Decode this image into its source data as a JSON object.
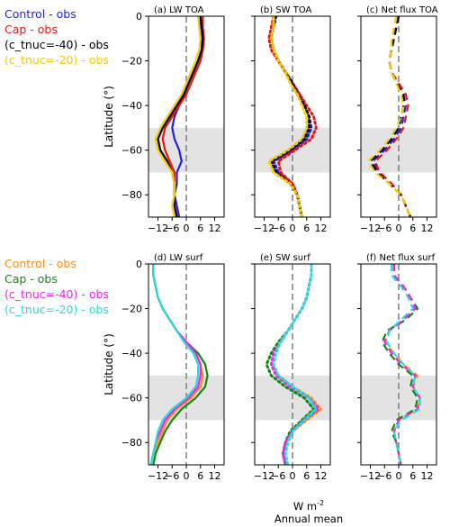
{
  "figure": {
    "xlabel_line1": "W m",
    "xlabel_sup": "-2",
    "xlabel_line2": "Annual mean",
    "ylabel": "Latitude (°)"
  },
  "colors": {
    "shade": "#e3e3e3",
    "zero_line": "#7f7f7f",
    "axis": "#000000"
  },
  "legends": [
    {
      "row": 0,
      "entries": [
        {
          "label": "Control - obs",
          "color": "#1f1fe6"
        },
        {
          "label": "Cap - obs",
          "color": "#ee1111"
        },
        {
          "label": "(c_tnuc=-40) - obs",
          "color": "#000000"
        },
        {
          "label": "(c_tnuc=-20) - obs",
          "color": "#f5cc00"
        }
      ]
    },
    {
      "row": 1,
      "entries": [
        {
          "label": "Control - obs",
          "color": "#ff8c1a"
        },
        {
          "label": "Cap - obs",
          "color": "#118811"
        },
        {
          "label": "(c_tnuc=-40) - obs",
          "color": "#ee22ee"
        },
        {
          "label": "(c_tnuc=-20) - obs",
          "color": "#22dddd"
        }
      ]
    }
  ],
  "chart_data": [
    {
      "type": "line",
      "panel": "(a)",
      "title": "LW TOA",
      "row": 0,
      "col": 0,
      "style": "solid",
      "xlim": [
        -16,
        16
      ],
      "ylim": [
        -90,
        0
      ],
      "xticks": [
        -12,
        -6,
        0,
        6,
        12
      ],
      "yticks": [
        0,
        -20,
        -40,
        -60,
        -80
      ],
      "shade": [
        -70,
        -50
      ],
      "lat": [
        0,
        -5,
        -10,
        -15,
        -20,
        -25,
        -30,
        -35,
        -40,
        -45,
        -50,
        -55,
        -60,
        -65,
        -70,
        -75,
        -80,
        -85,
        -90
      ],
      "series": [
        {
          "name": "Control - obs",
          "color": "#1f1fe6",
          "values": [
            6,
            6,
            6.5,
            6.5,
            5,
            3,
            1,
            -1,
            -3,
            -5,
            -6,
            -5,
            -3,
            -2,
            -4,
            -4,
            -5,
            -4,
            -3
          ]
        },
        {
          "name": "Cap - obs",
          "color": "#ee1111",
          "values": [
            7,
            7,
            7.5,
            7,
            6,
            4,
            2,
            0,
            -3,
            -6,
            -9,
            -10,
            -9,
            -7,
            -5,
            -5,
            -5,
            -5,
            -4
          ]
        },
        {
          "name": "(c_tnuc=-40) - obs",
          "color": "#000000",
          "values": [
            6,
            6.5,
            7,
            6.5,
            5,
            3,
            1,
            -1,
            -4,
            -7,
            -10,
            -12,
            -11,
            -8,
            -6,
            -5,
            -5,
            -5,
            -4
          ]
        },
        {
          "name": "(c_tnuc=-20) - obs",
          "color": "#f5cc00",
          "values": [
            5,
            5.5,
            6,
            5.5,
            4,
            2,
            0,
            -2,
            -5,
            -8,
            -11,
            -13,
            -12,
            -9,
            -6,
            -5,
            -5,
            -6,
            -5
          ]
        }
      ]
    },
    {
      "type": "line",
      "panel": "(b)",
      "title": "SW TOA",
      "row": 0,
      "col": 1,
      "style": "dotted",
      "xlim": [
        -16,
        16
      ],
      "ylim": [
        -90,
        0
      ],
      "xticks": [
        -12,
        -6,
        0,
        6,
        12
      ],
      "yticks": [
        0,
        -20,
        -40,
        -60,
        -80
      ],
      "shade": [
        -70,
        -50
      ],
      "lat": [
        0,
        -5,
        -10,
        -15,
        -20,
        -25,
        -30,
        -35,
        -40,
        -45,
        -50,
        -55,
        -60,
        -65,
        -70,
        -75,
        -80,
        -85,
        -90
      ],
      "series": [
        {
          "name": "Control - obs",
          "color": "#1f1fe6",
          "values": [
            -8,
            -8,
            -9,
            -8,
            -6,
            -3,
            0,
            3,
            5,
            7,
            8,
            6,
            0,
            -8,
            -6,
            0,
            2,
            3,
            4
          ]
        },
        {
          "name": "Cap - obs",
          "color": "#ee1111",
          "values": [
            -8,
            -9,
            -10,
            -9,
            -6,
            -3,
            0,
            3,
            6,
            9,
            10,
            8,
            1,
            -6,
            -5,
            0,
            2,
            3,
            4
          ]
        },
        {
          "name": "(c_tnuc=-40) - obs",
          "color": "#000000",
          "values": [
            -7,
            -8,
            -9,
            -8,
            -6,
            -3,
            0,
            2,
            5,
            7,
            7,
            5,
            -1,
            -9,
            -7,
            -1,
            2,
            3,
            4
          ]
        },
        {
          "name": "(c_tnuc=-20) - obs",
          "color": "#f5cc00",
          "values": [
            -8,
            -8,
            -9,
            -8,
            -6,
            -3,
            -1,
            2,
            4,
            6,
            6,
            4,
            -2,
            -10,
            -8,
            -1,
            2,
            3,
            4
          ]
        }
      ]
    },
    {
      "type": "line",
      "panel": "(c)",
      "title": "Net flux TOA",
      "row": 0,
      "col": 2,
      "style": "dashed",
      "xlim": [
        -16,
        16
      ],
      "ylim": [
        -90,
        0
      ],
      "xticks": [
        -12,
        -6,
        0,
        6,
        12
      ],
      "yticks": [
        0,
        -20,
        -40,
        -60,
        -80
      ],
      "shade": [
        -70,
        -50
      ],
      "lat": [
        0,
        -5,
        -10,
        -15,
        -20,
        -25,
        -30,
        -35,
        -40,
        -45,
        -50,
        -55,
        -60,
        -65,
        -70,
        -75,
        -80,
        -85,
        -90
      ],
      "series": [
        {
          "name": "Control - obs",
          "color": "#1f1fe6",
          "values": [
            0,
            -1,
            -2,
            -3,
            -4,
            -3,
            -1,
            2,
            3,
            2,
            1,
            -2,
            -6,
            -11,
            -8,
            -3,
            1,
            3,
            5
          ]
        },
        {
          "name": "Cap - obs",
          "color": "#ee1111",
          "values": [
            0,
            -1,
            -2,
            -3,
            -4,
            -3,
            0,
            3,
            4,
            3,
            2,
            -1,
            -5,
            -10,
            -8,
            -3,
            1,
            3,
            5
          ]
        },
        {
          "name": "(c_tnuc=-40) - obs",
          "color": "#000000",
          "values": [
            0,
            -1,
            -2,
            -3,
            -4,
            -3,
            -1,
            2,
            2,
            1,
            0,
            -3,
            -7,
            -12,
            -9,
            -4,
            1,
            3,
            5
          ]
        },
        {
          "name": "(c_tnuc=-20) - obs",
          "color": "#f5cc00",
          "values": [
            -1,
            -2,
            -3,
            -3,
            -4,
            -3,
            -1,
            1,
            2,
            1,
            -1,
            -4,
            -8,
            -13,
            -10,
            -4,
            1,
            3,
            5
          ]
        }
      ]
    },
    {
      "type": "line",
      "panel": "(d)",
      "title": "LW surf",
      "row": 1,
      "col": 0,
      "style": "solid",
      "xlim": [
        -16,
        16
      ],
      "ylim": [
        -90,
        0
      ],
      "xticks": [
        -12,
        -6,
        0,
        6,
        12
      ],
      "yticks": [
        0,
        -20,
        -40,
        -60,
        -80
      ],
      "shade": [
        -70,
        -50
      ],
      "lat": [
        0,
        -5,
        -10,
        -15,
        -20,
        -25,
        -30,
        -35,
        -40,
        -45,
        -50,
        -55,
        -60,
        -65,
        -70,
        -75,
        -80,
        -85,
        -90
      ],
      "series": [
        {
          "name": "Control - obs",
          "color": "#ff8c1a",
          "values": [
            -14,
            -14,
            -13,
            -12,
            -10,
            -7,
            -4,
            0,
            4,
            6,
            7,
            6,
            2,
            -4,
            -8,
            -10,
            -12,
            -14,
            -15
          ]
        },
        {
          "name": "Cap - obs",
          "color": "#118811",
          "values": [
            -14,
            -14,
            -13,
            -12,
            -10,
            -7,
            -4,
            0,
            5,
            8,
            9,
            8,
            4,
            -2,
            -6,
            -9,
            -11,
            -13,
            -14
          ]
        },
        {
          "name": "(c_tnuc=-40) - obs",
          "color": "#ee22ee",
          "values": [
            -14,
            -14,
            -13,
            -12,
            -10,
            -7,
            -4,
            0,
            4,
            6,
            6,
            5,
            1,
            -5,
            -9,
            -11,
            -13,
            -14,
            -15
          ]
        },
        {
          "name": "(c_tnuc=-20) - obs",
          "color": "#22dddd",
          "values": [
            -14,
            -14,
            -13,
            -12,
            -10,
            -7,
            -4,
            -1,
            3,
            5,
            5,
            4,
            0,
            -6,
            -10,
            -12,
            -13,
            -14,
            -15
          ]
        }
      ]
    },
    {
      "type": "line",
      "panel": "(e)",
      "title": "SW surf",
      "row": 1,
      "col": 1,
      "style": "dotted",
      "xlim": [
        -16,
        16
      ],
      "ylim": [
        -90,
        0
      ],
      "xticks": [
        -12,
        -6,
        0,
        6,
        12
      ],
      "yticks": [
        0,
        -20,
        -40,
        -60,
        -80
      ],
      "shade": [
        -70,
        -50
      ],
      "lat": [
        0,
        -5,
        -10,
        -15,
        -20,
        -25,
        -30,
        -35,
        -40,
        -45,
        -50,
        -55,
        -60,
        -65,
        -70,
        -75,
        -80,
        -85,
        -90
      ],
      "series": [
        {
          "name": "Control - obs",
          "color": "#ff8c1a",
          "values": [
            8,
            8,
            7,
            6,
            4,
            1,
            -2,
            -5,
            -8,
            -9,
            -6,
            0,
            8,
            12,
            6,
            0,
            -3,
            -4,
            -3
          ]
        },
        {
          "name": "Cap - obs",
          "color": "#118811",
          "values": [
            8,
            8,
            7,
            6,
            4,
            1,
            -2,
            -6,
            -9,
            -11,
            -9,
            -3,
            5,
            9,
            4,
            -1,
            -3,
            -4,
            -3
          ]
        },
        {
          "name": "(c_tnuc=-40) - obs",
          "color": "#ee22ee",
          "values": [
            8,
            8,
            7,
            6,
            4,
            1,
            -2,
            -5,
            -8,
            -9,
            -7,
            -1,
            7,
            11,
            5,
            0,
            -3,
            -4,
            -3
          ]
        },
        {
          "name": "(c_tnuc=-20) - obs",
          "color": "#22dddd",
          "values": [
            8,
            8,
            7,
            6,
            4,
            1,
            -2,
            -5,
            -7,
            -8,
            -6,
            0,
            7,
            10,
            5,
            0,
            -2,
            -3,
            -2
          ]
        }
      ]
    },
    {
      "type": "line",
      "panel": "(f)",
      "title": "Net flux surf",
      "row": 1,
      "col": 2,
      "style": "dashed",
      "xlim": [
        -16,
        16
      ],
      "ylim": [
        -90,
        0
      ],
      "xticks": [
        -12,
        -6,
        0,
        6,
        12
      ],
      "yticks": [
        0,
        -20,
        -40,
        -60,
        -80
      ],
      "shade": [
        -70,
        -50
      ],
      "lat": [
        0,
        -5,
        -10,
        -15,
        -20,
        -25,
        -30,
        -35,
        -40,
        -45,
        -50,
        -55,
        -60,
        -65,
        -70,
        -75,
        -80,
        -85,
        -90
      ],
      "series": [
        {
          "name": "Control - obs",
          "color": "#ff8c1a",
          "values": [
            -2,
            -2,
            2,
            5,
            7,
            2,
            -4,
            -6,
            -2,
            2,
            8,
            6,
            9,
            8,
            0,
            -2,
            -1,
            0,
            1
          ]
        },
        {
          "name": "Cap - obs",
          "color": "#118811",
          "values": [
            -2,
            -2,
            2,
            5,
            8,
            3,
            -5,
            -7,
            -4,
            0,
            6,
            5,
            8,
            7,
            -1,
            -3,
            -1,
            0,
            1
          ]
        },
        {
          "name": "(c_tnuc=-40) - obs",
          "color": "#ee22ee",
          "values": [
            -2,
            -2,
            2,
            5,
            7,
            2,
            -4,
            -6,
            -3,
            1,
            7,
            6,
            9,
            8,
            0,
            -2,
            -1,
            0,
            1
          ]
        },
        {
          "name": "(c_tnuc=-20) - obs",
          "color": "#22dddd",
          "values": [
            -3,
            -3,
            1,
            4,
            6,
            1,
            -4,
            -5,
            -2,
            2,
            7,
            6,
            9,
            9,
            1,
            -2,
            -1,
            0,
            1
          ]
        }
      ]
    }
  ]
}
